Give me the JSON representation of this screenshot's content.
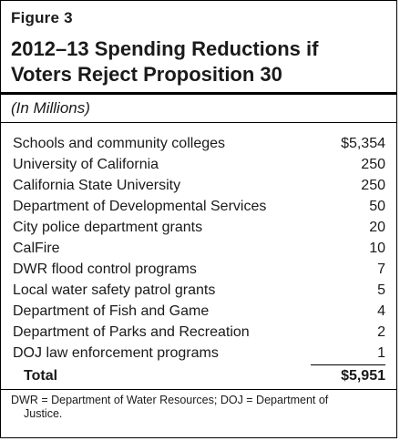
{
  "figure_label": "Figure 3",
  "title": "2012–13 Spending Reductions if Voters Reject Proposition 30",
  "units": "(In Millions)",
  "table": {
    "rows": [
      {
        "label": "Schools and community colleges",
        "value": "$5,354"
      },
      {
        "label": "University of California",
        "value": "250"
      },
      {
        "label": "California State University",
        "value": "250"
      },
      {
        "label": "Department of Developmental Services",
        "value": "50"
      },
      {
        "label": "City police department grants",
        "value": "20"
      },
      {
        "label": "CalFire",
        "value": "10"
      },
      {
        "label": "DWR flood control programs",
        "value": "7"
      },
      {
        "label": "Local water safety patrol grants",
        "value": "5"
      },
      {
        "label": "Department of Fish and Game",
        "value": "4"
      },
      {
        "label": "Department of Parks and Recreation",
        "value": "2"
      },
      {
        "label": "DOJ law enforcement programs",
        "value": "1"
      }
    ],
    "total": {
      "label": "Total",
      "value": "$5,951"
    }
  },
  "footnote": {
    "line1": "DWR = Department of Water Resources; DOJ = Department of",
    "line2": "Justice."
  }
}
